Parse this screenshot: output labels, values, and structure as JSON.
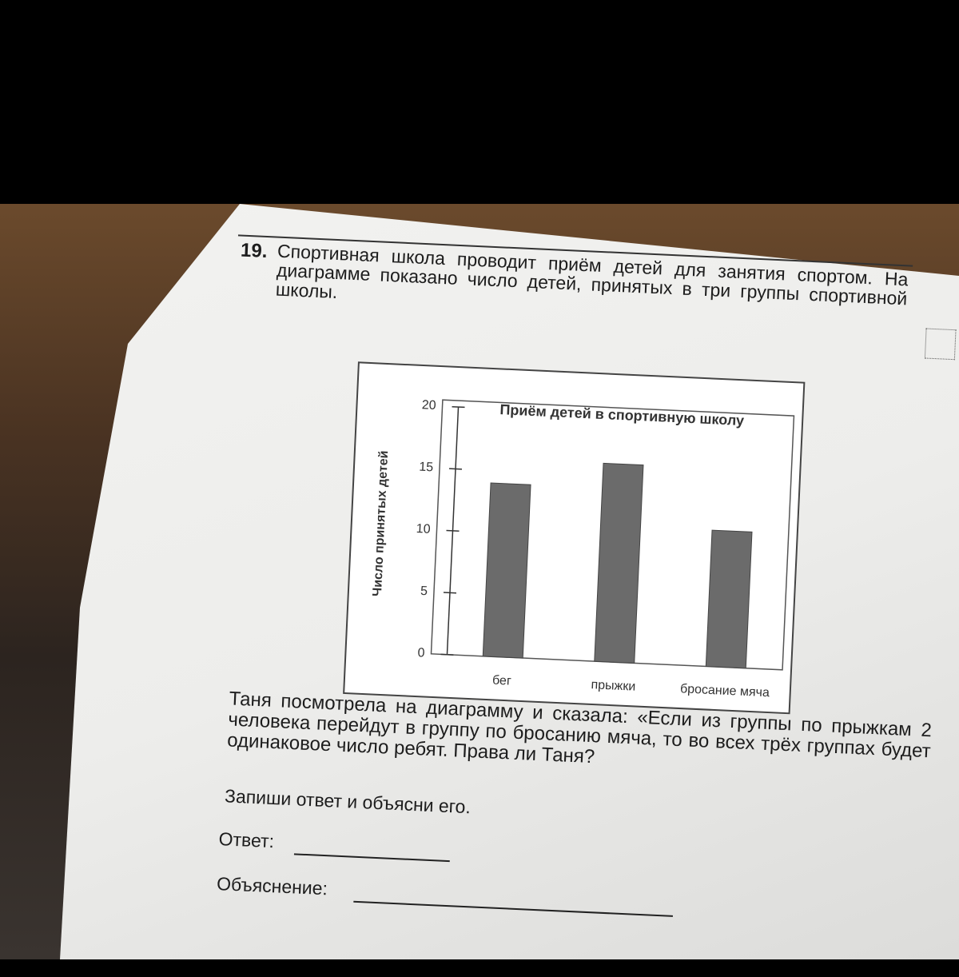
{
  "problem": {
    "number": "19.",
    "intro": "Спортивная школа проводит приём детей для занятия спортом. На диаграмме показано число детей, принятых в три группы спортивной школы.",
    "question": "Таня посмотрела на диаграмму и сказала: «Если из группы по прыжкам 2 человека перейдут в группу по бросанию мяча, то во всех трёх группах будет одинаковое число ребят. Права ли Таня?",
    "instruction": "Запиши ответ и объясни его.",
    "answer_label": "Ответ:",
    "explanation_label": "Объяснение:"
  },
  "chart_data": {
    "type": "bar",
    "title": "Приём детей в спортивную школу",
    "y_label": "Число принятых детей",
    "categories": [
      "бег",
      "прыжки",
      "бросание мяча"
    ],
    "values": [
      14,
      16,
      11
    ],
    "color": "#6b6b6b",
    "ylim": [
      0,
      20
    ],
    "yticks": [
      0,
      5,
      10,
      15,
      20
    ]
  }
}
